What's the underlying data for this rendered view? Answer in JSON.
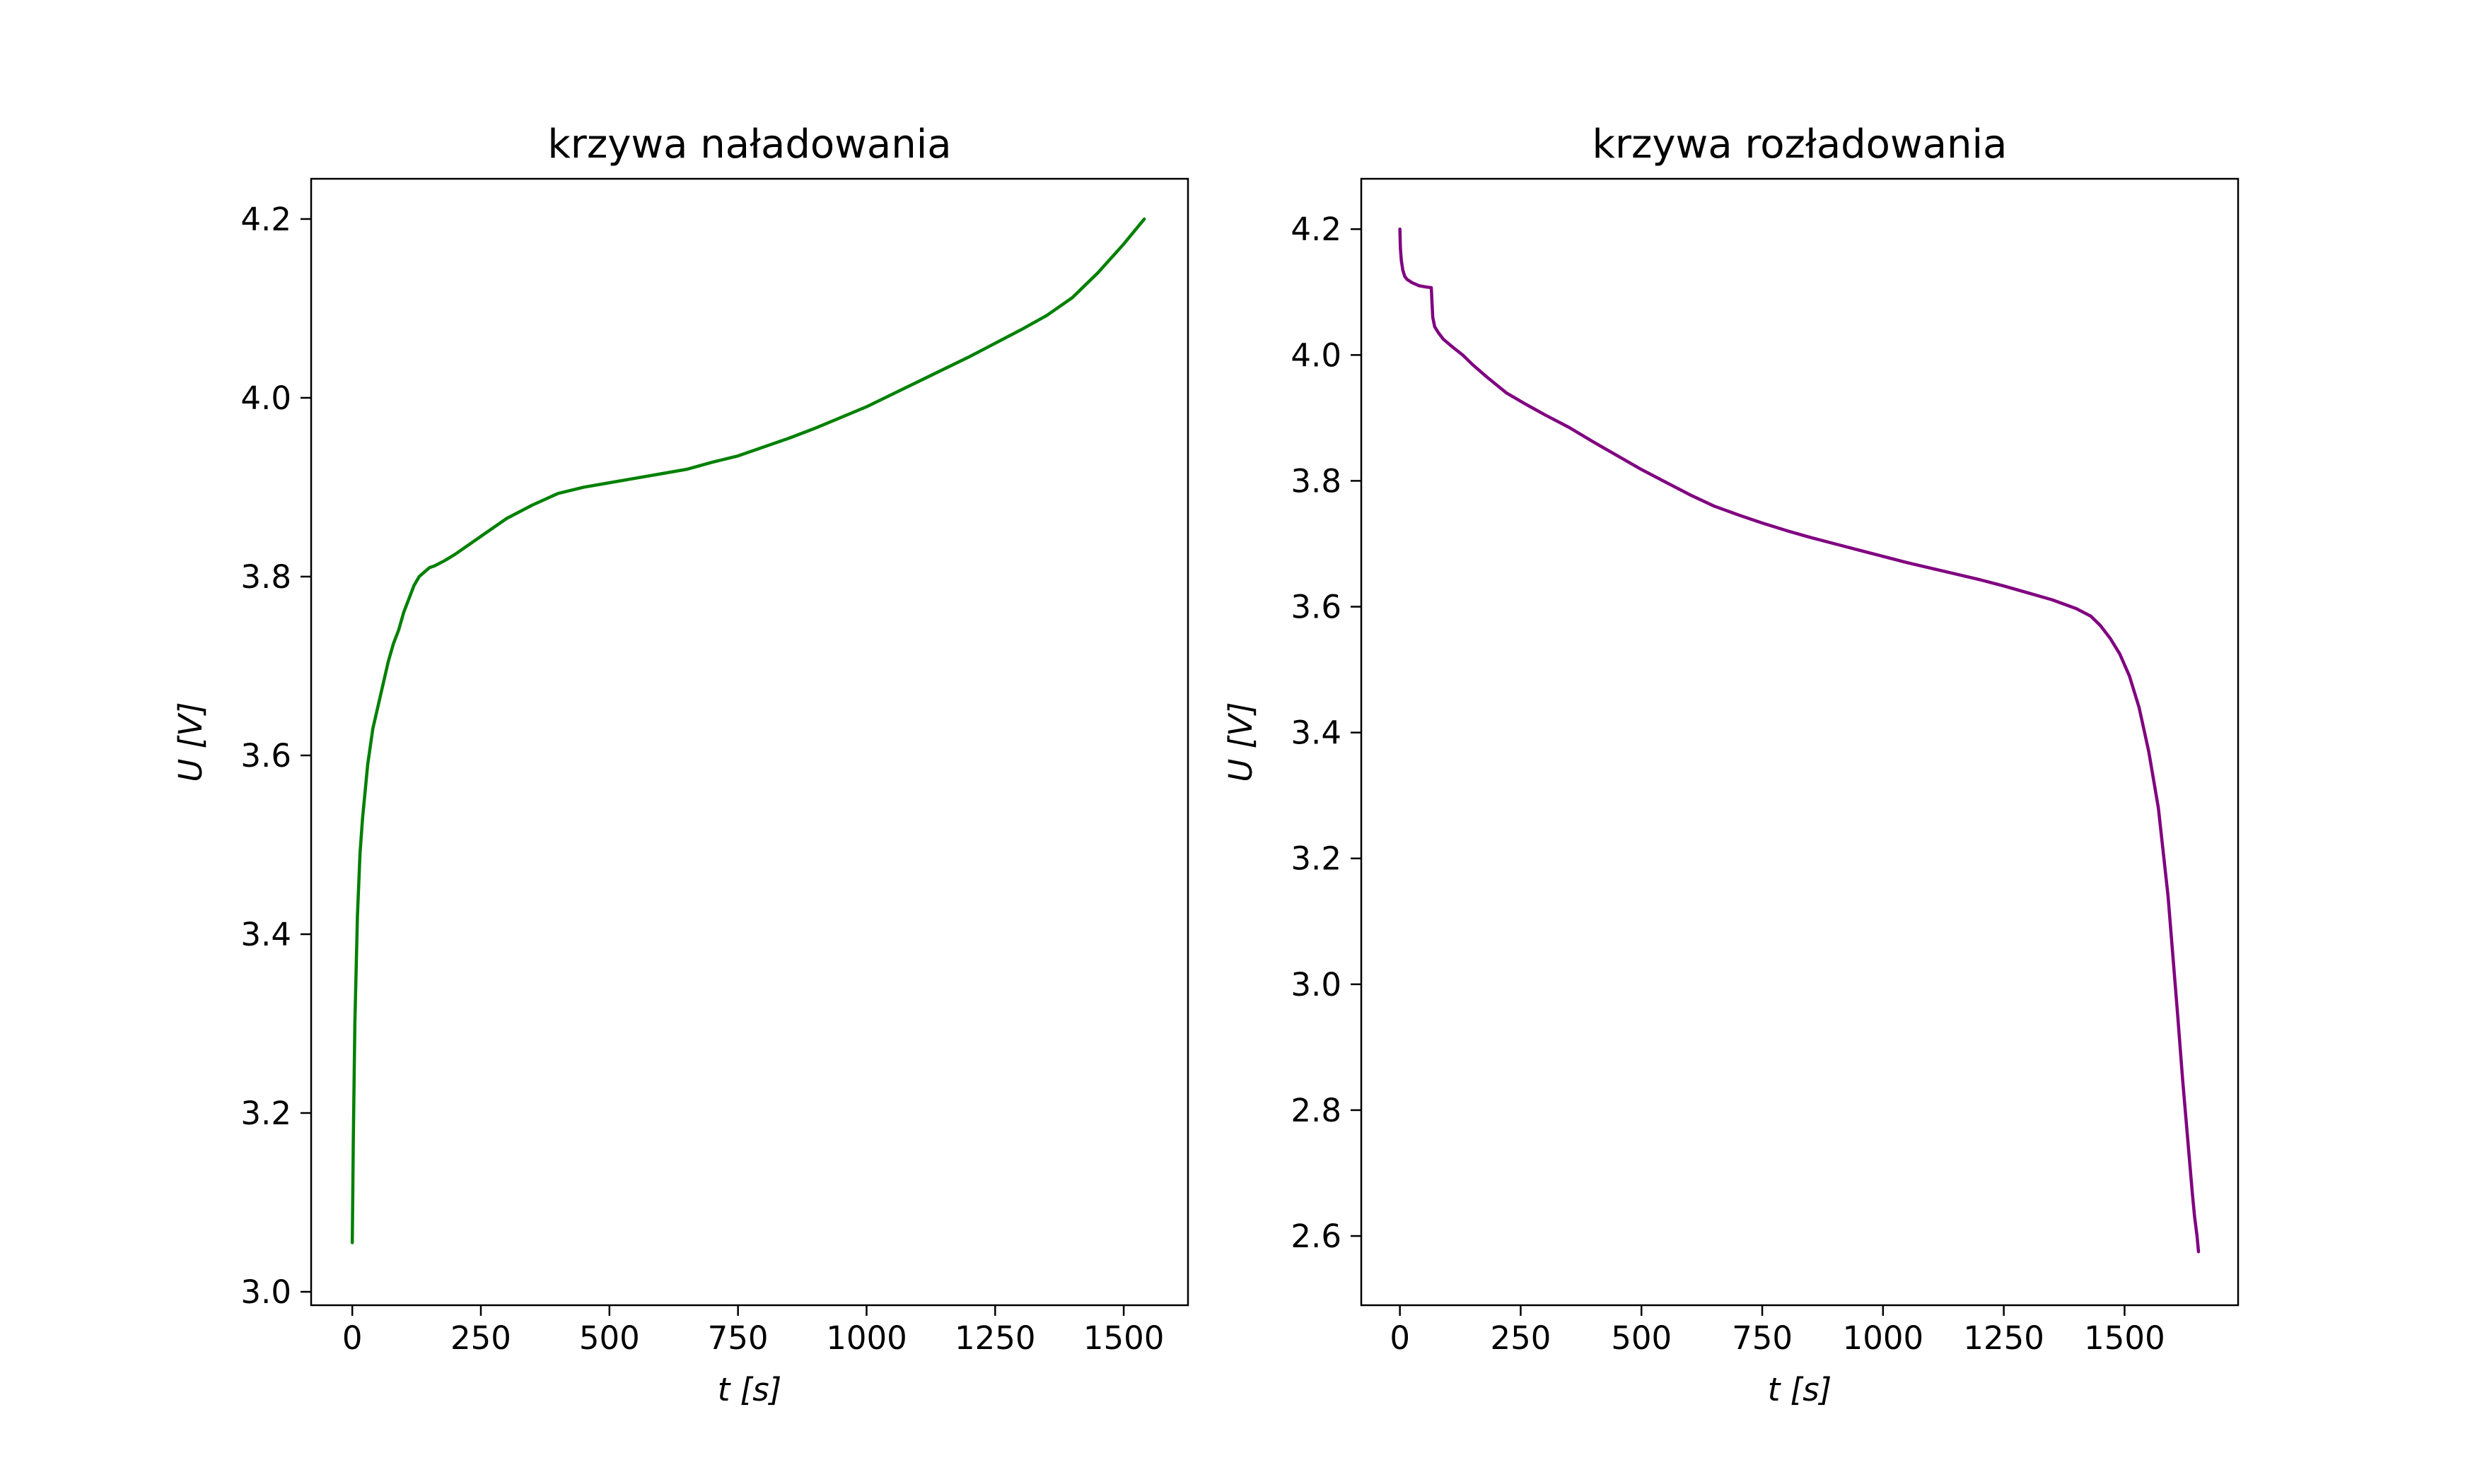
{
  "chart_data": [
    {
      "type": "line",
      "title": "krzywa naładowania",
      "xlabel": "t [s]",
      "ylabel": "U [V]",
      "color": "#008000",
      "xlim": [
        -80,
        1625
      ],
      "ylim": [
        2.985,
        4.245
      ],
      "x_ticks": [
        0,
        250,
        500,
        750,
        1000,
        1250,
        1500
      ],
      "x_tick_labels": [
        "0",
        "250",
        "500",
        "750",
        "1000",
        "1250",
        "1500"
      ],
      "y_ticks": [
        3.0,
        3.2,
        3.4,
        3.6,
        3.8,
        4.0,
        4.2
      ],
      "y_tick_labels": [
        "3.0",
        "3.2",
        "3.4",
        "3.6",
        "3.8",
        "4.0",
        "4.2"
      ],
      "grid": false,
      "legend": "none",
      "x": [
        0,
        2,
        5,
        10,
        15,
        20,
        30,
        40,
        50,
        60,
        70,
        80,
        90,
        100,
        110,
        120,
        130,
        140,
        150,
        160,
        180,
        200,
        250,
        300,
        350,
        400,
        450,
        500,
        550,
        600,
        650,
        700,
        750,
        800,
        850,
        900,
        950,
        1000,
        1050,
        1100,
        1150,
        1200,
        1250,
        1300,
        1350,
        1400,
        1450,
        1500,
        1540
      ],
      "y": [
        3.055,
        3.17,
        3.3,
        3.42,
        3.49,
        3.53,
        3.59,
        3.63,
        3.655,
        3.68,
        3.705,
        3.725,
        3.74,
        3.76,
        3.775,
        3.79,
        3.8,
        3.805,
        3.81,
        3.812,
        3.818,
        3.825,
        3.845,
        3.865,
        3.88,
        3.893,
        3.9,
        3.905,
        3.91,
        3.915,
        3.92,
        3.928,
        3.935,
        3.945,
        3.955,
        3.966,
        3.978,
        3.99,
        4.004,
        4.018,
        4.032,
        4.046,
        4.061,
        4.076,
        4.092,
        4.112,
        4.14,
        4.172,
        4.2
      ]
    },
    {
      "type": "line",
      "title": "krzywa rozładowania",
      "xlabel": "t [s]",
      "ylabel": "U [V]",
      "color": "#800080",
      "xlim": [
        -80,
        1735
      ],
      "ylim": [
        2.49,
        4.28
      ],
      "x_ticks": [
        0,
        250,
        500,
        750,
        1000,
        1250,
        1500
      ],
      "x_tick_labels": [
        "0",
        "250",
        "500",
        "750",
        "1000",
        "1250",
        "1500"
      ],
      "y_ticks": [
        2.6,
        2.8,
        3.0,
        3.2,
        3.4,
        3.6,
        3.8,
        4.0,
        4.2
      ],
      "y_tick_labels": [
        "2.6",
        "2.8",
        "3.0",
        "3.2",
        "3.4",
        "3.6",
        "3.8",
        "4.0",
        "4.2"
      ],
      "grid": false,
      "legend": "none",
      "x": [
        0,
        1,
        3,
        6,
        10,
        15,
        25,
        40,
        55,
        65,
        66,
        68,
        72,
        80,
        90,
        110,
        130,
        150,
        180,
        220,
        260,
        300,
        350,
        400,
        450,
        500,
        550,
        600,
        650,
        700,
        750,
        800,
        850,
        900,
        950,
        1000,
        1050,
        1100,
        1150,
        1200,
        1250,
        1300,
        1350,
        1400,
        1430,
        1450,
        1470,
        1490,
        1510,
        1530,
        1550,
        1570,
        1590,
        1610,
        1620,
        1630,
        1640,
        1645,
        1650,
        1653
      ],
      "y": [
        4.2,
        4.17,
        4.15,
        4.135,
        4.125,
        4.12,
        4.115,
        4.11,
        4.108,
        4.107,
        4.09,
        4.06,
        4.045,
        4.035,
        4.025,
        4.012,
        4.0,
        3.985,
        3.965,
        3.94,
        3.922,
        3.905,
        3.885,
        3.862,
        3.84,
        3.818,
        3.798,
        3.778,
        3.76,
        3.746,
        3.733,
        3.721,
        3.71,
        3.7,
        3.69,
        3.68,
        3.67,
        3.661,
        3.652,
        3.643,
        3.633,
        3.622,
        3.611,
        3.597,
        3.585,
        3.57,
        3.55,
        3.525,
        3.49,
        3.44,
        3.37,
        3.28,
        3.14,
        2.95,
        2.85,
        2.76,
        2.67,
        2.63,
        2.6,
        2.575
      ]
    }
  ]
}
